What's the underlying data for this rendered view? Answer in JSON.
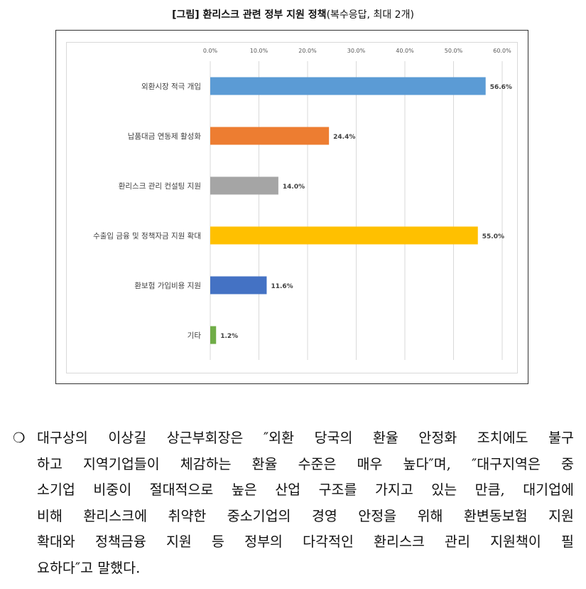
{
  "figure": {
    "title_bold": "[그림] 환리스크 관련 정부 지원 정책",
    "title_rest": "(복수응답, 최대 2개)"
  },
  "chart_data": {
    "type": "bar",
    "orientation": "horizontal",
    "categories": [
      "외환시장 적극 개입",
      "납품대금 연동제 활성화",
      "환리스크 관리 컨설팅 지원",
      "수출입 금융 및 정책자금 지원 확대",
      "환보험 가입비용 지원",
      "기타"
    ],
    "values": [
      56.6,
      24.4,
      14.0,
      55.0,
      11.6,
      1.2
    ],
    "value_labels": [
      "56.6%",
      "24.4%",
      "14.0%",
      "55.0%",
      "11.6%",
      "1.2%"
    ],
    "colors": [
      "#5b9bd5",
      "#ed7d31",
      "#a5a5a5",
      "#ffc000",
      "#4472c4",
      "#70ad47"
    ],
    "xlim": [
      0,
      60
    ],
    "xticks": [
      "0.0%",
      "10.0%",
      "20.0%",
      "30.0%",
      "40.0%",
      "50.0%",
      "60.0%"
    ],
    "grid": true,
    "title": "",
    "xlabel": "",
    "ylabel": ""
  },
  "body": {
    "bullet": "❍",
    "lines": [
      "대구상의 이상길 상근부회장은 ″외환 당국의 환율 안정화 조치에도 불구",
      "하고 지역기업들이 체감하는 환율 수준은 매우 높다″며, ″대구지역은 중",
      "소기업 비중이 절대적으로 높은 산업 구조를 가지고 있는 만큼, 대기업에",
      "비해 환리스크에 취약한 중소기업의 경영 안정을 위해 환변동보험 지원",
      "확대와 정책금융 지원 등 정부의 다각적인 환리스크 관리 지원책이 필",
      "요하다″고 말했다."
    ]
  }
}
